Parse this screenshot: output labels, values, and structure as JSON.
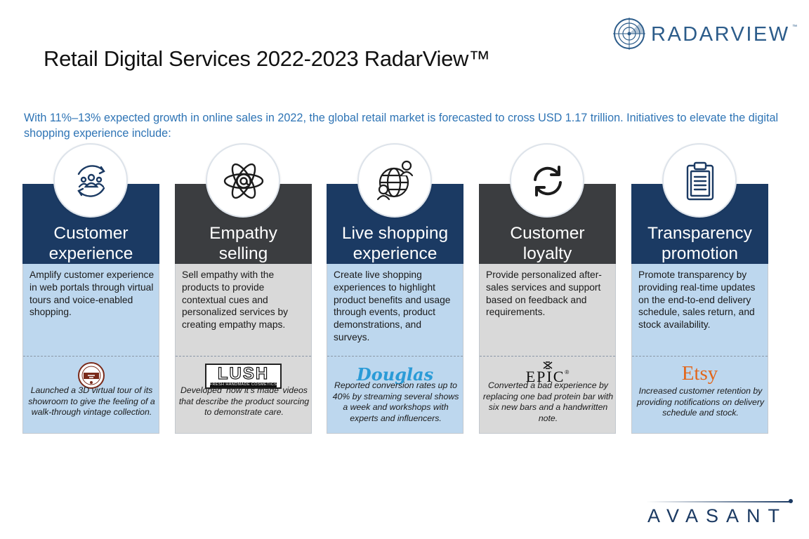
{
  "header": {
    "title": "Retail Digital Services 2022-2023 RadarView™",
    "brand_logo_text": "RADARVIEW",
    "brand_logo_tm": "™"
  },
  "intro": "With 11%–13% expected growth in online sales in 2022, the global retail market is forecasted to cross USD 1.17 trillion. Initiatives to elevate the digital shopping experience include:",
  "cards": [
    {
      "icon": "customer-group-cycle-icon",
      "title_line1": "Customer",
      "title_line2": "experience",
      "description": "Amplify customer experience in web portals through virtual tours and voice-enabled shopping.",
      "brand": "Route 77 badge",
      "note": "Launched a 3D virtual tour of its showroom to give the feeling of a walk-through vintage collection."
    },
    {
      "icon": "atom-at-sign-icon",
      "title_line1": "Empathy",
      "title_line2": "selling",
      "description": "Sell empathy with the products to provide contextual cues and personalized services by creating empathy maps.",
      "brand": "LUSH",
      "brand_sub": "FRESH HANDMADE COSMETICS",
      "note": "Developed ‘how it’s made’ videos that describe the product sourcing to demonstrate care."
    },
    {
      "icon": "globe-people-icon",
      "title_line1": "Live shopping",
      "title_line2": "experience",
      "description": "Create live shopping experiences to highlight product benefits and usage through events, product demonstrations, and surveys.",
      "brand": "Douglas",
      "note": "Reported conversion rates up to 40% by streaming several shows a week and workshops with experts and influencers."
    },
    {
      "icon": "refresh-arrows-icon",
      "title_line1": "Customer",
      "title_line2": "loyalty",
      "description": "Provide personalized after-sales services and support based on feedback and requirements.",
      "brand": "EPIC",
      "brand_mark": "®",
      "note": "Converted a bad experience by replacing one bad protein bar with six new bars and a handwritten note."
    },
    {
      "icon": "clipboard-list-icon",
      "title_line1": "Transparency",
      "title_line2": "promotion",
      "description": "Promote transparency by providing real-time updates on the end-to-end delivery schedule, sales return, and stock availability.",
      "brand": "Etsy",
      "note": "Increased customer retention by providing notifications on delivery schedule and stock."
    }
  ],
  "footer": {
    "brand_logo_text": "AVASANT"
  },
  "colors": {
    "navy": "#1b3a63",
    "charcoal": "#3b3d40",
    "light_blue": "#bdd7ee",
    "light_grey": "#d9d9d9",
    "intro_blue": "#2e74b5",
    "douglas_blue": "#2a9bd7",
    "etsy_orange": "#e2661b"
  }
}
